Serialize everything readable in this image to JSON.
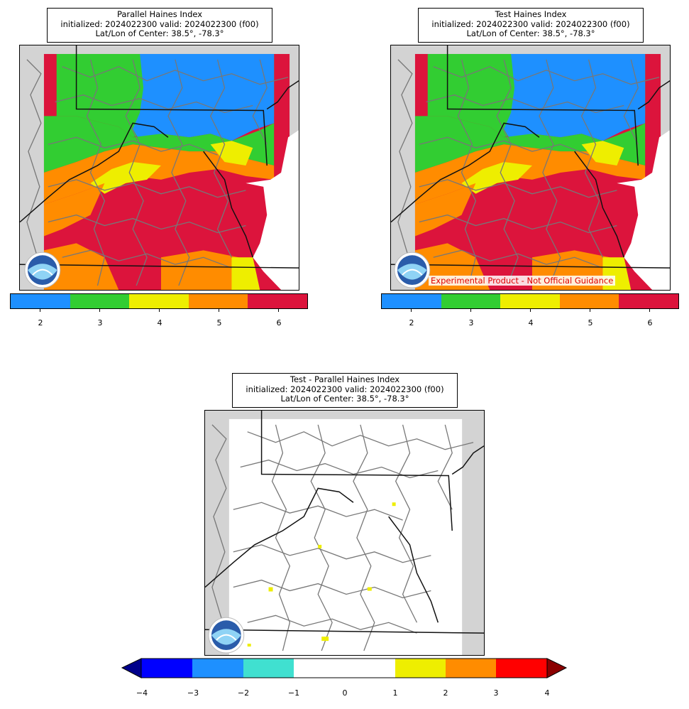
{
  "panels": {
    "parallel": {
      "title": "Parallel Haines Index",
      "init_line": "initialized: 2024022300 valid: 2024022300 (f00)",
      "center_line": "Lat/Lon of Center: 38.5°, -78.3°"
    },
    "test": {
      "title": "Test Haines Index",
      "init_line": "initialized: 2024022300 valid: 2024022300 (f00)",
      "center_line": "Lat/Lon of Center: 38.5°, -78.3°",
      "disclaimer": "Experimental Product - Not Official Guidance"
    },
    "difference": {
      "title": "Test - Parallel Haines Index",
      "init_line": "initialized: 2024022300 valid: 2024022300 (f00)",
      "center_line": "Lat/Lon of Center: 38.5°, -78.3°"
    }
  },
  "haines_colorbar": {
    "labels": [
      "2",
      "3",
      "4",
      "5",
      "6"
    ],
    "colors": [
      "#1e90ff",
      "#32cd32",
      "#eeee00",
      "#ff8c00",
      "#dc143c"
    ]
  },
  "difference_colorbar": {
    "labels": [
      "−4",
      "−3",
      "−2",
      "−1",
      "0",
      "1",
      "2",
      "3",
      "4"
    ],
    "colors": [
      "#0000ff",
      "#1e90ff",
      "#40e0d0",
      "#ffffff",
      "#ffffff",
      "#eeee00",
      "#ff8c00",
      "#ff0000"
    ],
    "under_color": "#00008b",
    "over_color": "#8b0000"
  },
  "logo": {
    "name": "NOAA",
    "icon": "noaa-logo-icon"
  }
}
